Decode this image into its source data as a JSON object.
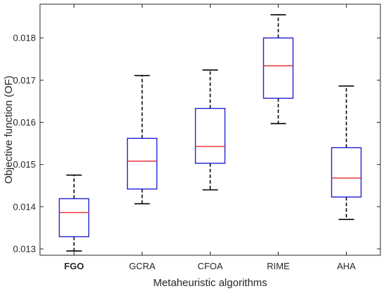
{
  "chart_data": {
    "type": "boxplot",
    "title": "",
    "xlabel": "Metaheuristic algorithms",
    "ylabel": "Objective function (OF)",
    "ylim": [
      0.01285,
      0.0188
    ],
    "yticks": [
      0.013,
      0.014,
      0.015,
      0.016,
      0.017,
      0.018
    ],
    "ytick_labels": [
      "0.013",
      "0.014",
      "0.015",
      "0.016",
      "0.017",
      "0.018"
    ],
    "grid": false,
    "categories": [
      "FGO",
      "GCRA",
      "CFOA",
      "RIME",
      "AHA"
    ],
    "bold_categories": [
      "FGO"
    ],
    "boxes": [
      {
        "category": "FGO",
        "min": 0.01295,
        "q1": 0.01329,
        "median": 0.01386,
        "q3": 0.01419,
        "max": 0.01475
      },
      {
        "category": "GCRA",
        "min": 0.01407,
        "q1": 0.01442,
        "median": 0.01508,
        "q3": 0.01562,
        "max": 0.01711
      },
      {
        "category": "CFOA",
        "min": 0.0144,
        "q1": 0.01503,
        "median": 0.01543,
        "q3": 0.01633,
        "max": 0.01724
      },
      {
        "category": "RIME",
        "min": 0.01597,
        "q1": 0.01657,
        "median": 0.01734,
        "q3": 0.018,
        "max": 0.01855
      },
      {
        "category": "AHA",
        "min": 0.0137,
        "q1": 0.01423,
        "median": 0.01468,
        "q3": 0.0154,
        "max": 0.01686
      }
    ],
    "colors": {
      "box": "#1f1fd6",
      "median": "#e8262b",
      "whisker": "#000000",
      "axes": "#262626"
    }
  }
}
